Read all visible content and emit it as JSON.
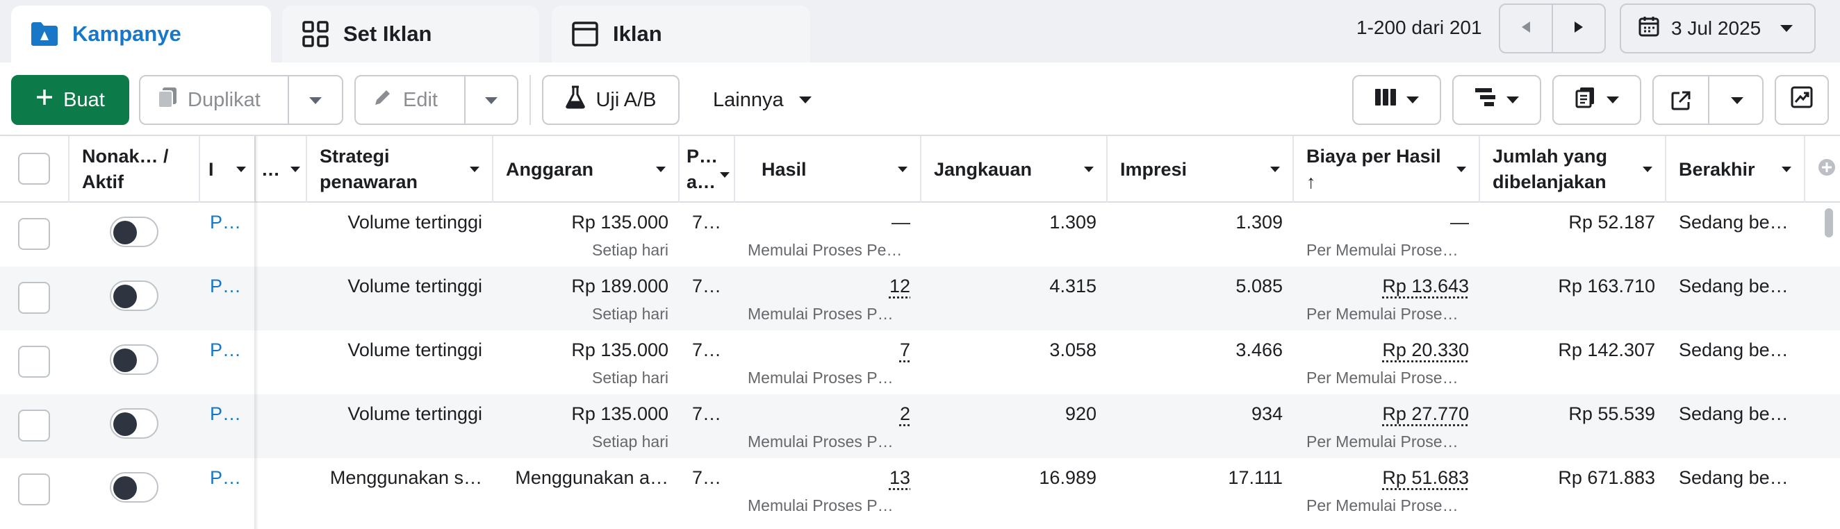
{
  "tabs": [
    {
      "label": "Kampanye",
      "icon": "folder-icon",
      "active": true
    },
    {
      "label": "Set Iklan",
      "icon": "grid-icon",
      "active": false
    },
    {
      "label": "Iklan",
      "icon": "ad-window-icon",
      "active": false
    }
  ],
  "pagination": {
    "text": "1-200 dari 201"
  },
  "date_picker": {
    "label": "3 Jul 2025"
  },
  "toolbar": {
    "create_label": "Buat",
    "duplicate_label": "Duplikat",
    "edit_label": "Edit",
    "ab_test_label": "Uji A/B",
    "more_label": "Lainnya"
  },
  "columns": [
    {
      "key": "toggle",
      "label": "Nonak… / Aktif"
    },
    {
      "key": "name",
      "label": "I"
    },
    {
      "key": "delivery",
      "label": "…"
    },
    {
      "key": "bid",
      "label": "Strategi penawaran"
    },
    {
      "key": "budget",
      "label": "Anggaran"
    },
    {
      "key": "attr",
      "label": "P… a…"
    },
    {
      "key": "results",
      "label": "Hasil"
    },
    {
      "key": "reach",
      "label": "Jangkauan"
    },
    {
      "key": "impr",
      "label": "Impresi"
    },
    {
      "key": "cpr",
      "label": "Biaya per Hasil ↑"
    },
    {
      "key": "spent",
      "label": "Jumlah yang dibelanjakan"
    },
    {
      "key": "ends",
      "label": "Berakhir"
    }
  ],
  "rows": [
    {
      "name": "P…",
      "bid": "Volume tertinggi",
      "budget": "Rp 135.000",
      "budget_sub": "Setiap hari",
      "attr": "7…",
      "results": "—",
      "results_sub": "Memulai Proses Pe…",
      "reach": "1.309",
      "impr": "1.309",
      "cpr": "—",
      "cpr_sub": "Per Memulai Prose…",
      "spent": "Rp 52.187",
      "ends": "Sedang be…"
    },
    {
      "name": "P…",
      "bid": "Volume tertinggi",
      "budget": "Rp 189.000",
      "budget_sub": "Setiap hari",
      "attr": "7…",
      "results": "12",
      "results_sub": "Memulai Proses P…",
      "reach": "4.315",
      "impr": "5.085",
      "cpr": "Rp 13.643",
      "cpr_sub": "Per Memulai Prose…",
      "spent": "Rp 163.710",
      "ends": "Sedang be…"
    },
    {
      "name": "P…",
      "bid": "Volume tertinggi",
      "budget": "Rp 135.000",
      "budget_sub": "Setiap hari",
      "attr": "7…",
      "results": "7",
      "results_sub": "Memulai Proses P…",
      "reach": "3.058",
      "impr": "3.466",
      "cpr": "Rp 20.330",
      "cpr_sub": "Per Memulai Prose…",
      "spent": "Rp 142.307",
      "ends": "Sedang be…"
    },
    {
      "name": "P…",
      "bid": "Volume tertinggi",
      "budget": "Rp 135.000",
      "budget_sub": "Setiap hari",
      "attr": "7…",
      "results": "2",
      "results_sub": "Memulai Proses P…",
      "reach": "920",
      "impr": "934",
      "cpr": "Rp 27.770",
      "cpr_sub": "Per Memulai Prose…",
      "spent": "Rp 55.539",
      "ends": "Sedang be…"
    },
    {
      "name": "P…",
      "bid": "Menggunakan s…",
      "budget": "Menggunakan a…",
      "budget_sub": "",
      "attr": "7…",
      "results": "13",
      "results_sub": "Memulai Proses P…",
      "reach": "16.989",
      "impr": "17.111",
      "cpr": "Rp 51.683",
      "cpr_sub": "Per Memulai Prose…",
      "spent": "Rp 671.883",
      "ends": "Sedang be…"
    }
  ],
  "colors": {
    "accent": "#1877c6",
    "primary_button": "#0d7a4a"
  }
}
